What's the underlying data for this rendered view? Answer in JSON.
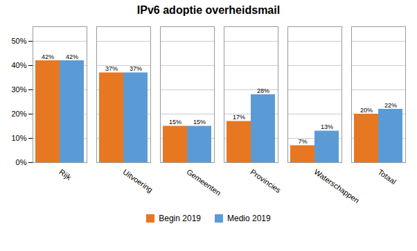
{
  "chart_data": {
    "type": "bar",
    "title": "IPv6 adoptie overheidsmail",
    "categories": [
      "Rijk",
      "Uitvoering",
      "Gemeenten",
      "Provincies",
      "Waterschappen",
      "Totaal"
    ],
    "series": [
      {
        "name": "Begin 2019",
        "color": "#E87722",
        "values": [
          0.42,
          0.37,
          0.15,
          0.17,
          0.07,
          0.2
        ],
        "value_labels": [
          "42%",
          "37%",
          "15%",
          "17%",
          "7%",
          "20%"
        ]
      },
      {
        "name": "Medio 2019",
        "color": "#5B9BD5",
        "values": [
          0.42,
          0.37,
          0.15,
          0.28,
          0.13,
          0.22
        ],
        "value_labels": [
          "42%",
          "37%",
          "15%",
          "28%",
          "13%",
          "22%"
        ]
      }
    ],
    "ylim": [
      0,
      0.56
    ],
    "yticks": [
      {
        "value": 0,
        "label": "0%"
      },
      {
        "value": 0.1,
        "label": "10%"
      },
      {
        "value": 0.2,
        "label": "20%"
      },
      {
        "value": 0.3,
        "label": "30%"
      },
      {
        "value": 0.4,
        "label": "40%"
      },
      {
        "value": 0.5,
        "label": "50%"
      }
    ],
    "grid": true,
    "legend": "bottom",
    "data_labels": true
  }
}
